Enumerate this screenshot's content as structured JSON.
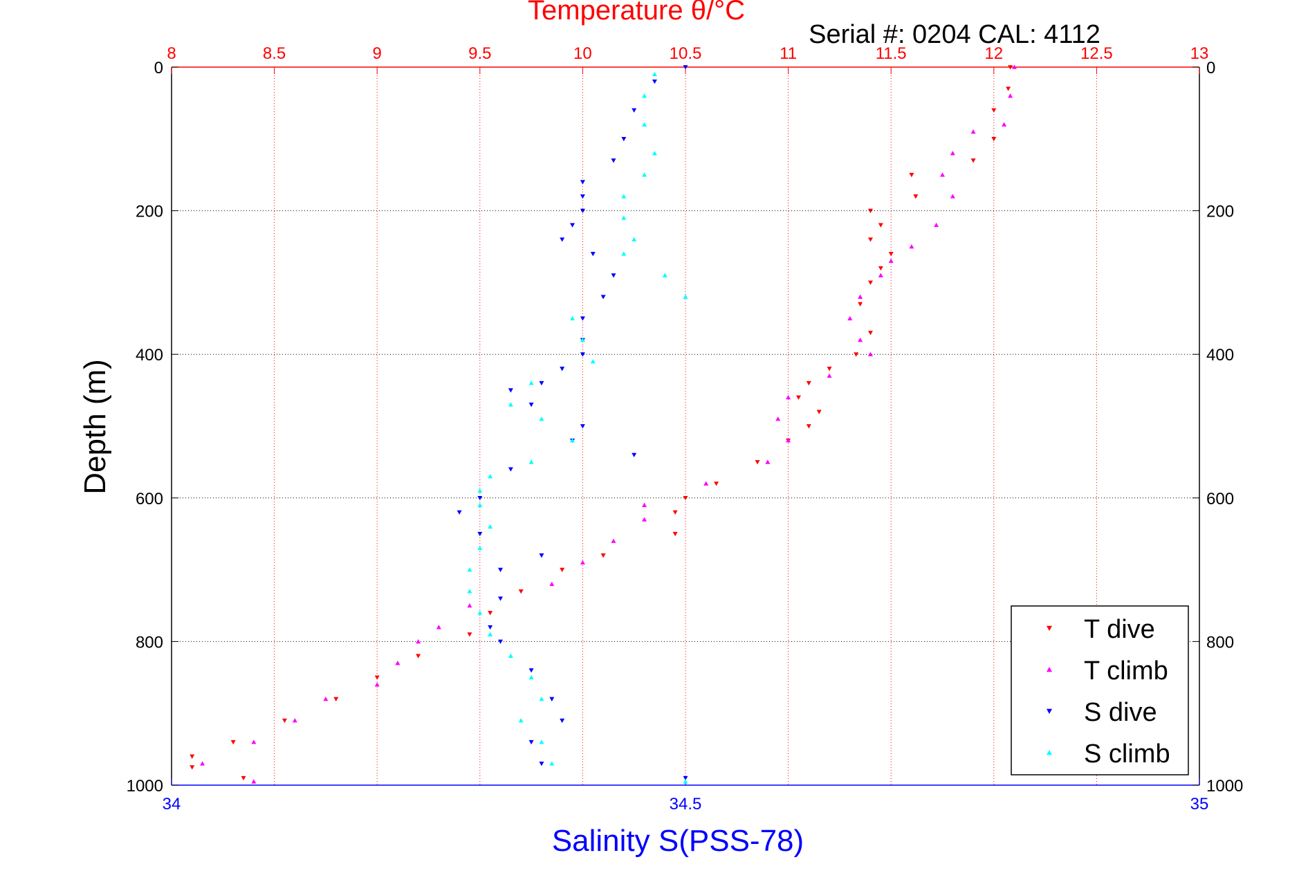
{
  "chart_data": {
    "type": "scatter",
    "title": "Temperature θ/°C",
    "subtitle": "Serial #: 0204  CAL: 4112",
    "ylabel": "Depth (m)",
    "xlabel_bottom": "Salinity S(PSS-78)",
    "xlabel_top": "Temperature θ/°C",
    "ylim": [
      0,
      1000
    ],
    "y_reversed": true,
    "xlim_top": [
      8,
      13
    ],
    "xlim_bottom": [
      34,
      35
    ],
    "ticks": {
      "top": [
        "8",
        "8.5",
        "9",
        "9.5",
        "10",
        "10.5",
        "11",
        "11.5",
        "12",
        "12.5",
        "13"
      ],
      "bottom": [
        "34",
        "34.5",
        "35"
      ],
      "left": [
        "0",
        "200",
        "400",
        "600",
        "800",
        "1000"
      ],
      "right": [
        "0",
        "200",
        "400",
        "600",
        "800",
        "1000"
      ]
    },
    "grid": true,
    "legend_position": "bottom-right",
    "colors": {
      "temperature_axis": "#ff0000",
      "salinity_axis": "#0000ff",
      "T dive": "#ff0000",
      "T climb": "#ff00ff",
      "S dive": "#0000ff",
      "S climb": "#00ffff"
    },
    "series": [
      {
        "name": "T dive",
        "axis": "temperature",
        "marker": "triangle-down",
        "color": "#ff0000",
        "depth": [
          0,
          30,
          60,
          100,
          130,
          150,
          180,
          200,
          220,
          240,
          260,
          280,
          300,
          330,
          370,
          400,
          420,
          440,
          460,
          480,
          500,
          520,
          550,
          580,
          600,
          620,
          650,
          680,
          700,
          730,
          760,
          790,
          820,
          850,
          880,
          910,
          940,
          960,
          975,
          990
        ],
        "value": [
          12.08,
          12.07,
          12.0,
          12.0,
          11.9,
          11.6,
          11.62,
          11.4,
          11.45,
          11.4,
          11.5,
          11.45,
          11.4,
          11.35,
          11.4,
          11.33,
          11.2,
          11.1,
          11.05,
          11.15,
          11.1,
          11.0,
          10.85,
          10.65,
          10.5,
          10.45,
          10.45,
          10.1,
          9.9,
          9.7,
          9.55,
          9.45,
          9.2,
          9.0,
          8.8,
          8.55,
          8.3,
          8.1,
          8.1,
          8.35
        ]
      },
      {
        "name": "T climb",
        "axis": "temperature",
        "marker": "triangle-up",
        "color": "#ff00ff",
        "depth": [
          0,
          40,
          80,
          90,
          120,
          150,
          180,
          220,
          250,
          270,
          290,
          320,
          350,
          380,
          400,
          430,
          460,
          490,
          520,
          550,
          580,
          610,
          630,
          660,
          690,
          720,
          750,
          780,
          800,
          830,
          860,
          880,
          910,
          940,
          970,
          995
        ],
        "value": [
          12.1,
          12.08,
          12.05,
          11.9,
          11.8,
          11.75,
          11.8,
          11.72,
          11.6,
          11.5,
          11.45,
          11.35,
          11.3,
          11.35,
          11.4,
          11.2,
          11.0,
          10.95,
          11.0,
          10.9,
          10.6,
          10.3,
          10.3,
          10.15,
          10.0,
          9.85,
          9.45,
          9.3,
          9.2,
          9.1,
          9.0,
          8.75,
          8.6,
          8.4,
          8.15,
          8.4
        ]
      },
      {
        "name": "S dive",
        "axis": "salinity",
        "marker": "triangle-down",
        "color": "#0000ff",
        "depth": [
          0,
          20,
          60,
          100,
          130,
          160,
          180,
          200,
          220,
          240,
          260,
          290,
          320,
          350,
          380,
          400,
          420,
          440,
          450,
          470,
          500,
          520,
          540,
          560,
          600,
          620,
          650,
          680,
          700,
          740,
          780,
          800,
          840,
          880,
          910,
          940,
          970,
          990
        ],
        "value": [
          34.5,
          34.47,
          34.45,
          34.44,
          34.43,
          34.4,
          34.4,
          34.4,
          34.39,
          34.38,
          34.41,
          34.43,
          34.42,
          34.4,
          34.4,
          34.4,
          34.38,
          34.36,
          34.33,
          34.35,
          34.4,
          34.39,
          34.45,
          34.33,
          34.3,
          34.28,
          34.3,
          34.36,
          34.32,
          34.32,
          34.31,
          34.32,
          34.35,
          34.37,
          34.38,
          34.35,
          34.36,
          34.5
        ]
      },
      {
        "name": "S climb",
        "axis": "salinity",
        "marker": "triangle-up",
        "color": "#00ffff",
        "depth": [
          10,
          40,
          80,
          120,
          150,
          180,
          210,
          240,
          260,
          290,
          320,
          350,
          380,
          410,
          440,
          470,
          490,
          520,
          550,
          570,
          590,
          610,
          640,
          670,
          700,
          730,
          760,
          790,
          820,
          850,
          880,
          910,
          940,
          970,
          995
        ],
        "value": [
          34.47,
          34.46,
          34.46,
          34.47,
          34.46,
          34.44,
          34.44,
          34.45,
          34.44,
          34.48,
          34.5,
          34.39,
          34.4,
          34.41,
          34.35,
          34.33,
          34.36,
          34.39,
          34.35,
          34.31,
          34.3,
          34.3,
          34.31,
          34.3,
          34.29,
          34.29,
          34.3,
          34.31,
          34.33,
          34.35,
          34.36,
          34.34,
          34.36,
          34.37,
          34.5
        ]
      }
    ]
  }
}
